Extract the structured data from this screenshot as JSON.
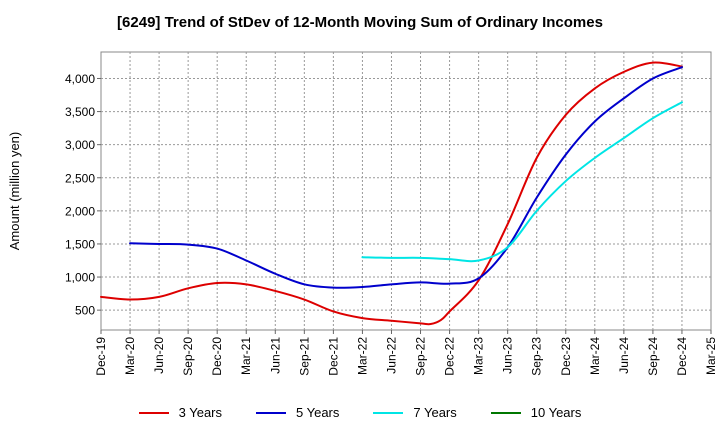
{
  "chart_data": {
    "type": "line",
    "title": "[6249]  Trend of StDev of 12-Month Moving Sum of Ordinary Incomes",
    "ylabel": "Amount (million yen)",
    "xlabel": "",
    "grid": true,
    "ylim": [
      200,
      4400
    ],
    "yticks": [
      500,
      1000,
      1500,
      2000,
      2500,
      3000,
      3500,
      4000
    ],
    "ytick_labels": [
      "500",
      "1,000",
      "1,500",
      "2,000",
      "2,500",
      "3,000",
      "3,500",
      "4,000"
    ],
    "x_labels": [
      "Dec-19",
      "Mar-20",
      "Jun-20",
      "Sep-20",
      "Dec-20",
      "Mar-21",
      "Jun-21",
      "Sep-21",
      "Dec-21",
      "Mar-22",
      "Jun-22",
      "Sep-22",
      "Dec-22",
      "Mar-23",
      "Jun-23",
      "Sep-23",
      "Dec-23",
      "Mar-24",
      "Jun-24",
      "Sep-24",
      "Dec-24",
      "Mar-25"
    ],
    "legend_position": "bottom",
    "series": [
      {
        "name": "3 Years",
        "color": "#dd0000",
        "points": [
          [
            0,
            700
          ],
          [
            1,
            660
          ],
          [
            2,
            700
          ],
          [
            3,
            830
          ],
          [
            4,
            910
          ],
          [
            5,
            890
          ],
          [
            6,
            790
          ],
          [
            7,
            660
          ],
          [
            8,
            480
          ],
          [
            9,
            380
          ],
          [
            10,
            340
          ],
          [
            11,
            300
          ],
          [
            11.35,
            290
          ],
          [
            11.7,
            350
          ],
          [
            12,
            480
          ],
          [
            13,
            950
          ],
          [
            14,
            1800
          ],
          [
            15,
            2800
          ],
          [
            16,
            3450
          ],
          [
            17,
            3850
          ],
          [
            18,
            4100
          ],
          [
            19,
            4240
          ],
          [
            20,
            4180
          ]
        ]
      },
      {
        "name": "5 Years",
        "color": "#0000cc",
        "points": [
          [
            1,
            1510
          ],
          [
            2,
            1500
          ],
          [
            3,
            1490
          ],
          [
            4,
            1430
          ],
          [
            5,
            1250
          ],
          [
            6,
            1050
          ],
          [
            7,
            890
          ],
          [
            8,
            840
          ],
          [
            9,
            850
          ],
          [
            10,
            890
          ],
          [
            11,
            920
          ],
          [
            12,
            900
          ],
          [
            13,
            980
          ],
          [
            14,
            1450
          ],
          [
            15,
            2200
          ],
          [
            16,
            2850
          ],
          [
            17,
            3350
          ],
          [
            18,
            3700
          ],
          [
            19,
            4000
          ],
          [
            20,
            4170
          ]
        ]
      },
      {
        "name": "7 Years",
        "color": "#00e5e5",
        "points": [
          [
            9,
            1300
          ],
          [
            10,
            1290
          ],
          [
            11,
            1290
          ],
          [
            12,
            1270
          ],
          [
            13,
            1250
          ],
          [
            14,
            1450
          ],
          [
            15,
            2000
          ],
          [
            16,
            2450
          ],
          [
            17,
            2800
          ],
          [
            18,
            3100
          ],
          [
            19,
            3400
          ],
          [
            20,
            3640
          ]
        ]
      },
      {
        "name": "10 Years",
        "color": "#007700",
        "points": []
      }
    ]
  }
}
